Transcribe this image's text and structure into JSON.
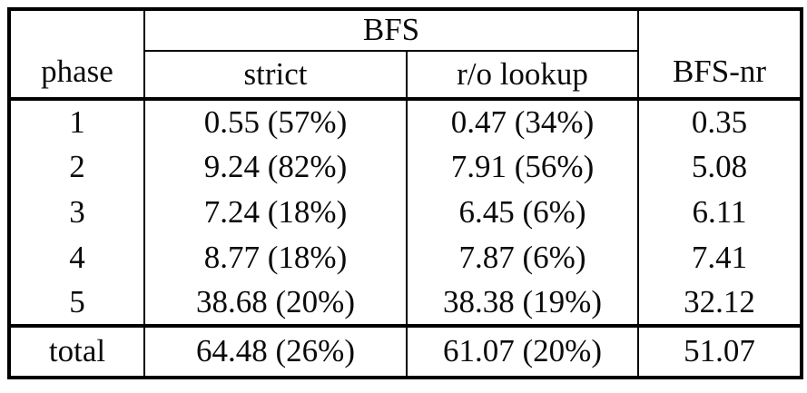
{
  "table": {
    "header": {
      "phase_label": "phase",
      "bfs_group_label": "BFS",
      "strict_label": "strict",
      "ro_lookup_label": "r/o lookup",
      "bfs_nr_label": "BFS-nr"
    },
    "rows": [
      {
        "phase": "1",
        "strict": "0.55 (57%)",
        "ro_lookup": "0.47 (34%)",
        "bfs_nr": "0.35"
      },
      {
        "phase": "2",
        "strict": "9.24 (82%)",
        "ro_lookup": "7.91 (56%)",
        "bfs_nr": "5.08"
      },
      {
        "phase": "3",
        "strict": "7.24 (18%)",
        "ro_lookup": "6.45 (6%)",
        "bfs_nr": "6.11"
      },
      {
        "phase": "4",
        "strict": "8.77 (18%)",
        "ro_lookup": "7.87 (6%)",
        "bfs_nr": "7.41"
      },
      {
        "phase": "5",
        "strict": "38.68 (20%)",
        "ro_lookup": "38.38 (19%)",
        "bfs_nr": "32.12"
      }
    ],
    "total_row": {
      "phase": "total",
      "strict": "64.48 (26%)",
      "ro_lookup": "61.07 (20%)",
      "bfs_nr": "51.07"
    },
    "colors": {
      "border": "#000000",
      "text": "#0a0a0a",
      "background": "#ffffff"
    }
  }
}
